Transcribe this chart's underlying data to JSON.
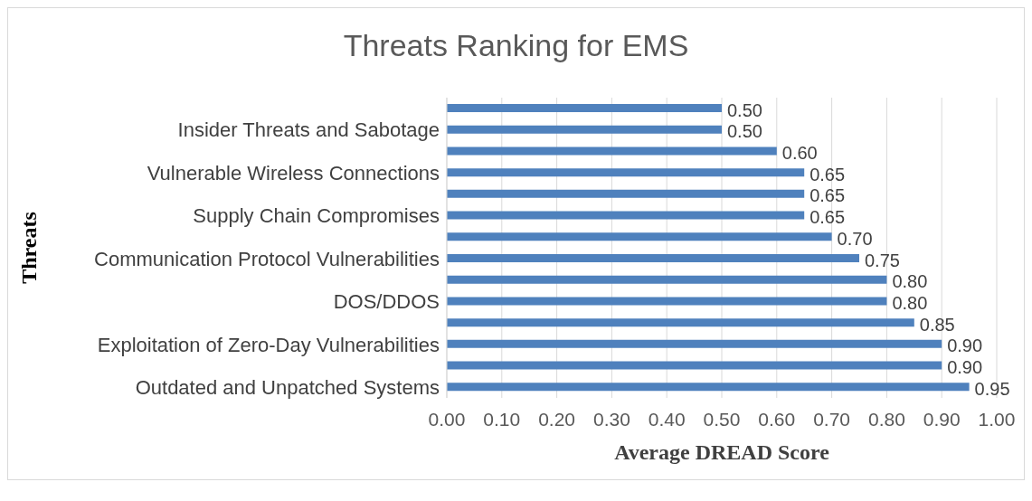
{
  "chart_data": {
    "type": "bar",
    "orientation": "horizontal",
    "title": "Threats Ranking for EMS",
    "xlabel": "Average DREAD Score",
    "ylabel": "Threats",
    "categories": [
      null,
      "Insider Threats and Sabotage",
      null,
      "Vulnerable Wireless Connections",
      null,
      "Supply Chain Compromises",
      null,
      "Communication Protocol Vulnerabilities",
      null,
      "DOS/DDOS",
      null,
      "Exploitation of Zero-Day Vulnerabilities",
      null,
      "Outdated and Unpatched Systems"
    ],
    "values": [
      0.5,
      0.5,
      0.6,
      0.65,
      0.65,
      0.65,
      0.7,
      0.75,
      0.8,
      0.8,
      0.85,
      0.9,
      0.9,
      0.95
    ],
    "value_labels": [
      "0.50",
      "0.50",
      "0.60",
      "0.65",
      "0.65",
      "0.65",
      "0.70",
      "0.75",
      "0.80",
      "0.80",
      "0.85",
      "0.90",
      "0.90",
      "0.95"
    ],
    "color": "#4f81bd",
    "xlim": [
      0,
      1
    ],
    "xticks": [
      {
        "value": 0,
        "label": "0.00"
      },
      {
        "value": 0.1,
        "label": "0.10"
      },
      {
        "value": 0.2,
        "label": "0.20"
      },
      {
        "value": 0.3,
        "label": "0.30"
      },
      {
        "value": 0.4,
        "label": "0.40"
      },
      {
        "value": 0.5,
        "label": "0.50"
      },
      {
        "value": 0.6,
        "label": "0.60"
      },
      {
        "value": 0.7,
        "label": "0.70"
      },
      {
        "value": 0.8,
        "label": "0.80"
      },
      {
        "value": 0.9,
        "label": "0.90"
      },
      {
        "value": 1,
        "label": "1.00"
      }
    ],
    "grid": "x"
  }
}
